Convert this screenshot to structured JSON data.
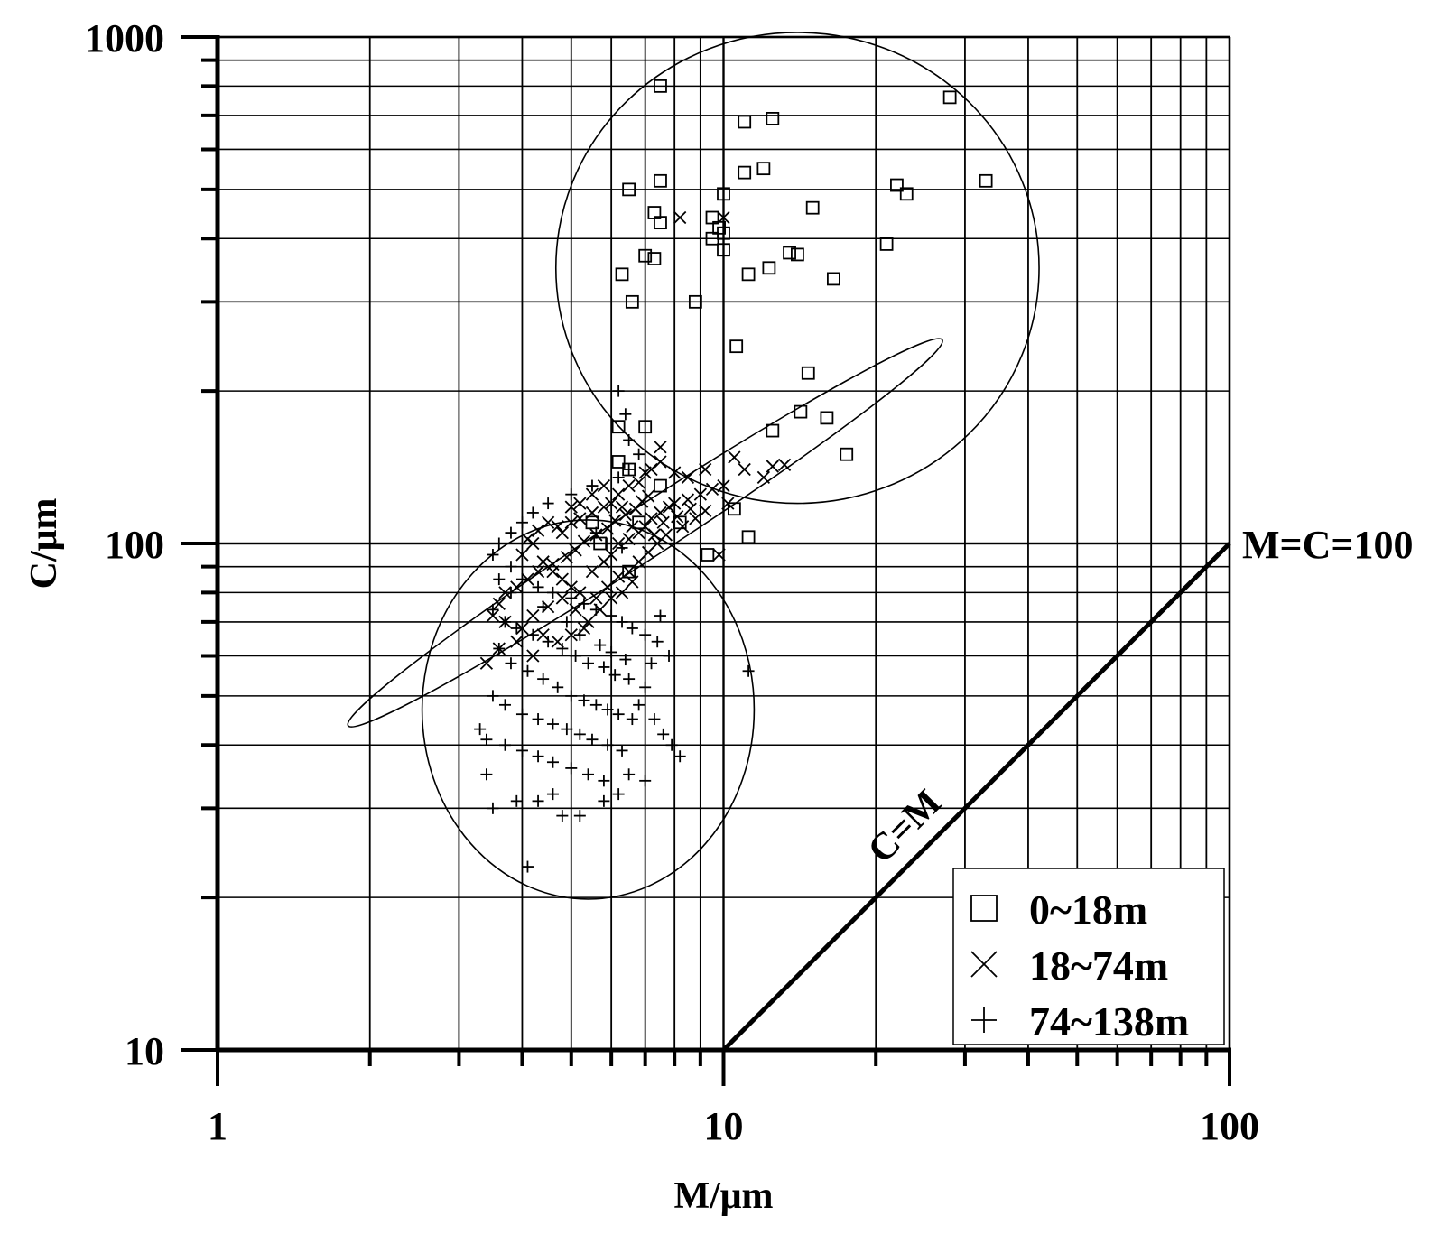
{
  "chart_data": {
    "type": "scatter",
    "x_scale": "log",
    "y_scale": "log",
    "xlim": [
      1,
      100
    ],
    "ylim": [
      10,
      1000
    ],
    "xlabel": "M/μm",
    "ylabel": "C/μm",
    "x_ticks": [
      "1",
      "10",
      "100"
    ],
    "y_ticks": [
      "10",
      "100",
      "1000"
    ],
    "grid": true,
    "legend_position": "bottom-right",
    "annotations": {
      "line_label": "C=M",
      "line_end_label": "M=C=100"
    },
    "reference_line": {
      "name": "C=M",
      "points": [
        [
          10,
          10
        ],
        [
          100,
          100
        ]
      ]
    },
    "series": [
      {
        "name": "0~18m",
        "marker": "square",
        "points": [
          [
            7.5,
            800
          ],
          [
            11,
            680
          ],
          [
            12.5,
            690
          ],
          [
            28,
            760
          ],
          [
            6.5,
            500
          ],
          [
            7.5,
            520
          ],
          [
            10,
            490
          ],
          [
            11,
            540
          ],
          [
            12,
            550
          ],
          [
            22,
            510
          ],
          [
            23,
            490
          ],
          [
            33,
            520
          ],
          [
            7.3,
            450
          ],
          [
            7.5,
            430
          ],
          [
            9.5,
            440
          ],
          [
            9.8,
            420
          ],
          [
            10,
            410
          ],
          [
            9.5,
            400
          ],
          [
            10,
            380
          ],
          [
            15,
            460
          ],
          [
            7,
            370
          ],
          [
            7.3,
            365
          ],
          [
            13.5,
            375
          ],
          [
            14,
            372
          ],
          [
            21,
            390
          ],
          [
            6.3,
            340
          ],
          [
            6.6,
            300
          ],
          [
            11.2,
            340
          ],
          [
            12.3,
            350
          ],
          [
            16.5,
            333
          ],
          [
            8.8,
            300
          ],
          [
            10.6,
            245
          ],
          [
            14.7,
            217
          ],
          [
            14.2,
            182
          ],
          [
            16,
            177
          ],
          [
            6.2,
            170
          ],
          [
            7,
            170
          ],
          [
            12.5,
            167
          ],
          [
            17.5,
            150
          ],
          [
            6.2,
            145
          ],
          [
            6.5,
            140
          ],
          [
            7.5,
            130
          ],
          [
            10.5,
            117
          ],
          [
            11.2,
            103
          ],
          [
            9.3,
            95
          ],
          [
            8.2,
            110
          ],
          [
            6.8,
            110
          ],
          [
            6.5,
            88
          ],
          [
            5.7,
            100
          ],
          [
            5.5,
            110
          ]
        ]
      },
      {
        "name": "18~74m",
        "marker": "x",
        "points": [
          [
            8.2,
            440
          ],
          [
            10,
            440
          ],
          [
            7.5,
            155
          ],
          [
            9.2,
            140
          ],
          [
            10.5,
            148
          ],
          [
            11,
            140
          ],
          [
            12,
            135
          ],
          [
            12.5,
            142
          ],
          [
            13.2,
            143
          ],
          [
            10,
            130
          ],
          [
            10.2,
            120
          ],
          [
            8.5,
            135
          ],
          [
            8,
            138
          ],
          [
            7.5,
            145
          ],
          [
            7.2,
            140
          ],
          [
            7,
            138
          ],
          [
            6.8,
            132
          ],
          [
            6.5,
            130
          ],
          [
            6.2,
            125
          ],
          [
            6,
            120
          ],
          [
            5.8,
            118
          ],
          [
            5.5,
            115
          ],
          [
            5.2,
            120
          ],
          [
            5,
            118
          ],
          [
            5,
            110
          ],
          [
            4.8,
            105
          ],
          [
            4.5,
            110
          ],
          [
            4.2,
            100
          ],
          [
            4,
            95
          ],
          [
            4.4,
            92
          ],
          [
            4.6,
            88
          ],
          [
            4.8,
            85
          ],
          [
            5,
            82
          ],
          [
            5.2,
            80
          ],
          [
            5.5,
            88
          ],
          [
            5.8,
            92
          ],
          [
            6,
            95
          ],
          [
            6.2,
            100
          ],
          [
            6.5,
            102
          ],
          [
            6.8,
            105
          ],
          [
            7,
            108
          ],
          [
            7.2,
            112
          ],
          [
            7.5,
            115
          ],
          [
            7.8,
            118
          ],
          [
            8,
            120
          ],
          [
            8.5,
            122
          ],
          [
            9,
            125
          ],
          [
            9.5,
            128
          ],
          [
            6.1,
            111
          ],
          [
            6.4,
            114
          ],
          [
            6.7,
            117
          ],
          [
            6.9,
            121
          ],
          [
            7.1,
            124
          ],
          [
            5.9,
            107
          ],
          [
            5.6,
            104
          ],
          [
            5.3,
            101
          ],
          [
            5.1,
            97
          ],
          [
            4.9,
            94
          ],
          [
            4.6,
            91
          ],
          [
            4.3,
            88
          ],
          [
            4.1,
            85
          ],
          [
            3.9,
            82
          ],
          [
            3.7,
            80
          ],
          [
            3.6,
            76
          ],
          [
            3.5,
            72
          ],
          [
            3.7,
            70
          ],
          [
            4,
            68
          ],
          [
            4.2,
            72
          ],
          [
            4.5,
            75
          ],
          [
            4.8,
            78
          ],
          [
            5.1,
            74
          ],
          [
            5.4,
            70
          ],
          [
            5.6,
            78
          ],
          [
            5.9,
            82
          ],
          [
            6.2,
            86
          ],
          [
            6.5,
            88
          ],
          [
            6.8,
            92
          ],
          [
            7.1,
            96
          ],
          [
            7.4,
            100
          ],
          [
            7.7,
            104
          ],
          [
            8.3,
            108
          ],
          [
            8.8,
            112
          ],
          [
            9.2,
            116
          ],
          [
            9.8,
            95
          ],
          [
            3.4,
            58
          ],
          [
            3.6,
            62
          ],
          [
            3.9,
            64
          ],
          [
            4.2,
            60
          ],
          [
            4.4,
            66
          ],
          [
            4.7,
            64
          ],
          [
            5,
            66
          ],
          [
            5.3,
            68
          ],
          [
            5.7,
            74
          ],
          [
            6,
            78
          ],
          [
            6.3,
            80
          ],
          [
            6.6,
            84
          ],
          [
            5.5,
            125
          ],
          [
            5.8,
            130
          ],
          [
            6.3,
            118
          ],
          [
            6.6,
            108
          ],
          [
            7.3,
            104
          ],
          [
            7.6,
            110
          ],
          [
            8.1,
            113
          ],
          [
            8.6,
            117
          ],
          [
            4.1,
            102
          ],
          [
            4.3,
            106
          ],
          [
            4.7,
            108
          ],
          [
            5.2,
            112
          ]
        ]
      },
      {
        "name": "74~138m",
        "marker": "plus",
        "points": [
          [
            6.2,
            200
          ],
          [
            6.4,
            180
          ],
          [
            6.5,
            160
          ],
          [
            6.8,
            150
          ],
          [
            6.5,
            140
          ],
          [
            6.2,
            135
          ],
          [
            5.5,
            130
          ],
          [
            5,
            125
          ],
          [
            4.5,
            120
          ],
          [
            4.2,
            115
          ],
          [
            4,
            110
          ],
          [
            3.8,
            105
          ],
          [
            3.6,
            100
          ],
          [
            3.5,
            95
          ],
          [
            3.8,
            90
          ],
          [
            4,
            85
          ],
          [
            4.3,
            82
          ],
          [
            4.6,
            80
          ],
          [
            5,
            78
          ],
          [
            5.3,
            76
          ],
          [
            5.6,
            74
          ],
          [
            6,
            72
          ],
          [
            6.3,
            70
          ],
          [
            6.6,
            68
          ],
          [
            7,
            66
          ],
          [
            7.4,
            64
          ],
          [
            7.8,
            60
          ],
          [
            3.5,
            74
          ],
          [
            3.7,
            70
          ],
          [
            3.9,
            68
          ],
          [
            4.2,
            66
          ],
          [
            4.5,
            64
          ],
          [
            4.8,
            62
          ],
          [
            5.1,
            60
          ],
          [
            5.4,
            58
          ],
          [
            5.8,
            57
          ],
          [
            6.1,
            55
          ],
          [
            6.5,
            54
          ],
          [
            7,
            52
          ],
          [
            3.6,
            62
          ],
          [
            3.8,
            58
          ],
          [
            4.1,
            56
          ],
          [
            4.4,
            54
          ],
          [
            4.7,
            52
          ],
          [
            5,
            50
          ],
          [
            5.3,
            49
          ],
          [
            5.6,
            48
          ],
          [
            5.9,
            47
          ],
          [
            6.2,
            46
          ],
          [
            6.6,
            45
          ],
          [
            3.5,
            50
          ],
          [
            3.7,
            48
          ],
          [
            4,
            46
          ],
          [
            4.3,
            45
          ],
          [
            4.6,
            44
          ],
          [
            4.9,
            43
          ],
          [
            5.2,
            42
          ],
          [
            5.5,
            41
          ],
          [
            5.9,
            40
          ],
          [
            6.3,
            39
          ],
          [
            3.3,
            43
          ],
          [
            3.4,
            41
          ],
          [
            3.7,
            40
          ],
          [
            4,
            39
          ],
          [
            4.3,
            38
          ],
          [
            4.6,
            37
          ],
          [
            5,
            36
          ],
          [
            5.4,
            35
          ],
          [
            5.8,
            34
          ],
          [
            6.5,
            35
          ],
          [
            7,
            34
          ],
          [
            3.4,
            35
          ],
          [
            3.5,
            30
          ],
          [
            3.9,
            31
          ],
          [
            4.3,
            31
          ],
          [
            4.6,
            32
          ],
          [
            4.8,
            29
          ],
          [
            5.2,
            29
          ],
          [
            5.8,
            31
          ],
          [
            6.2,
            32
          ],
          [
            7.3,
            45
          ],
          [
            7.6,
            42
          ],
          [
            7.9,
            40
          ],
          [
            8.2,
            38
          ],
          [
            11.2,
            56
          ],
          [
            7.5,
            72
          ],
          [
            7.2,
            58
          ],
          [
            6.8,
            48
          ],
          [
            4.1,
            23
          ],
          [
            5.6,
            105
          ],
          [
            5.9,
            100
          ],
          [
            6.3,
            98
          ],
          [
            3.6,
            85
          ],
          [
            3.8,
            80
          ],
          [
            4.4,
            75
          ],
          [
            4.9,
            70
          ],
          [
            5.2,
            66
          ],
          [
            5.7,
            63
          ],
          [
            6,
            61
          ],
          [
            6.4,
            59
          ]
        ]
      }
    ],
    "ellipses": [
      {
        "center": [
          14,
          350
        ],
        "semi_axis_x_log": 0.4775,
        "semi_axis_y_log": 0.4649,
        "rotation_deg": 0
      },
      {
        "center": [
          5.4,
          47
        ],
        "semi_axis_x_log": 0.3281,
        "semi_axis_y_log": 0.3743,
        "rotation_deg": 0
      },
      {
        "center": [
          7,
          105
        ],
        "semi_axis_x_log": 0.7,
        "semi_axis_y_log": 0.05,
        "rotation_deg": -33
      }
    ]
  }
}
